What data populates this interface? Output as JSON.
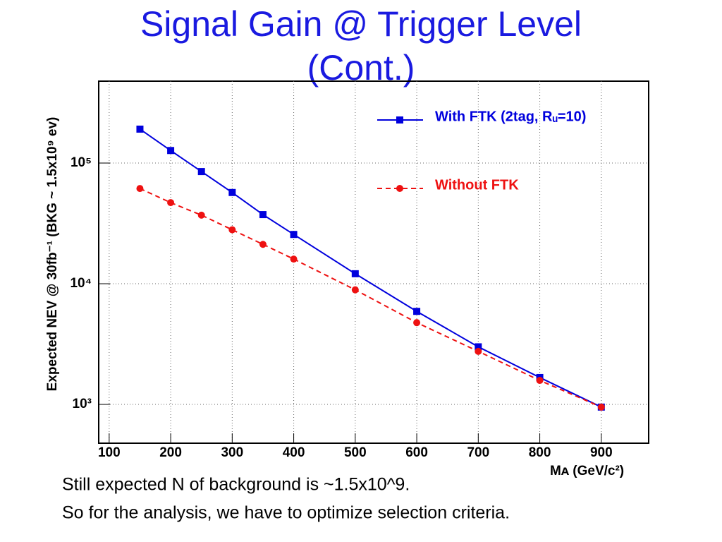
{
  "title_lines": [
    "Signal Gain @ Trigger Level",
    "(Cont.)"
  ],
  "notes": [
    "Still expected N of background is ~1.5x10^9.",
    "So for the analysis, we have to optimize selection criteria."
  ],
  "chart_data": {
    "type": "line",
    "x_label": "Mᴀ (GeV/c²)",
    "y_label": "Expected NEV @ 30fb⁻¹ (BKG ~ 1.5x10⁹ ev)",
    "x": [
      150,
      200,
      250,
      300,
      350,
      400,
      500,
      600,
      700,
      800,
      900
    ],
    "series": [
      {
        "name": "With FTK (2tag, Rᵤ=10)",
        "color": "#0000dd",
        "dash": false,
        "marker": "square",
        "values": [
          191000,
          127000,
          85000,
          57000,
          37400,
          25600,
          12100,
          5900,
          3000,
          1670,
          950
        ]
      },
      {
        "name": "Without FTK",
        "color": "#ee1111",
        "dash": true,
        "marker": "circle",
        "values": [
          61500,
          47000,
          37000,
          28000,
          21200,
          16000,
          8900,
          4760,
          2750,
          1580,
          950
        ]
      }
    ],
    "xlim": [
      83,
      977
    ],
    "xticks": [
      100,
      200,
      300,
      400,
      500,
      600,
      700,
      800,
      900
    ],
    "ylim": [
      477,
      477000
    ],
    "log_y": true,
    "yticks": [
      {
        "value": 1000,
        "label": "10³"
      },
      {
        "value": 10000,
        "label": "10⁴"
      },
      {
        "value": 100000,
        "label": "10⁵"
      }
    ],
    "grid": true
  }
}
